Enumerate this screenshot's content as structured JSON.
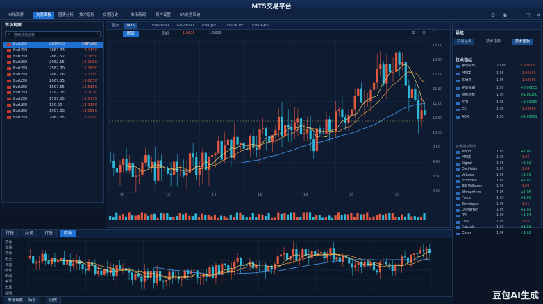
{
  "app": {
    "title": "MT5交易平台"
  },
  "menu": [
    {
      "label": "市场观察"
    },
    {
      "label": "交易面板"
    },
    {
      "label": "图表分析"
    },
    {
      "label": "技术指标"
    },
    {
      "label": "交易历史"
    },
    {
      "label": "市场新闻"
    },
    {
      "label": "账户设置"
    },
    {
      "label": "EA交易系统"
    }
  ],
  "market_watch": {
    "title": "市场观察",
    "search_placeholder": "搜索交易品种",
    "rows": [
      {
        "symbol": "EurUSD",
        "bid": "GBPUSD",
        "ask": "GBPUSD",
        "selected": true
      },
      {
        "symbol": "EurUSD",
        "bid": "2867.33",
        "ask": "13.1150"
      },
      {
        "symbol": "EurUSD",
        "bid": "2867.52",
        "ask": "12.1850"
      },
      {
        "symbol": "EurUSD",
        "bid": "2952.15",
        "ask": "13.1060"
      },
      {
        "symbol": "EurUSD",
        "bid": "2562.70",
        "ask": "12.1680"
      },
      {
        "symbol": "EurUSD",
        "bid": "2867.16",
        "ask": "13.1150"
      },
      {
        "symbol": "EurUSD",
        "bid": "2067.55",
        "ask": "13.0850"
      },
      {
        "symbol": "EurUSD",
        "bid": "1597.55",
        "ask": "13.5150"
      },
      {
        "symbol": "EurUSD",
        "bid": "1297.05",
        "ask": "13.1010"
      },
      {
        "symbol": "EurUSD",
        "bid": "1597.05",
        "ask": "13.5750"
      },
      {
        "symbol": "EurUSD",
        "bid": "130.20",
        "ask": "13.1150"
      },
      {
        "symbol": "EurUSD",
        "bid": "1997.00",
        "ask": "13.0850"
      },
      {
        "symbol": "EurUSD",
        "bid": "2067.35",
        "ask": "13.1150"
      }
    ]
  },
  "chart_tabs": [
    {
      "label": "图表"
    },
    {
      "label": "MT5"
    },
    {
      "label": "EUR/USD"
    },
    {
      "label": "GBP/USD"
    },
    {
      "label": "EUR/JPY"
    },
    {
      "label": "USD/CHF"
    },
    {
      "label": "EUR/GBP"
    }
  ],
  "chart_toolbar": {
    "mode": "图表",
    "period": "周期",
    "price": "1.0828",
    "range": "1.0820"
  },
  "navigator": {
    "title": "导航",
    "tabs": [
      {
        "label": "交易品种"
      },
      {
        "label": "技术指标"
      },
      {
        "label": "技术面板"
      }
    ],
    "section": "技术指标",
    "rows": [
      {
        "k": "移动平均",
        "v1": "20.00",
        "v2": "1.05023"
      },
      {
        "k": "MACD",
        "v1": "1.05",
        "v2": "-1.00039"
      },
      {
        "k": "布林带",
        "v1": "1.05",
        "v2": "-1.08050"
      },
      {
        "k": "相对强弱",
        "v1": "1.05",
        "v2": "+0.06033"
      },
      {
        "k": "随机指标",
        "v1": "1.05",
        "v2": "+1.00150"
      },
      {
        "k": "ATR",
        "v1": "1.05",
        "v2": "+1.00059"
      },
      {
        "k": "CCI",
        "v1": "1.05",
        "v2": "-1.02560"
      },
      {
        "k": "ADX",
        "v1": "1.05",
        "v2": "+1.00089"
      }
    ],
    "list_title": "技术指标列表",
    "list": [
      {
        "k": "Trend",
        "v1": "1.05",
        "v2": "+1.00"
      },
      {
        "k": "MACD",
        "v1": "1.05",
        "v2": "-1.06"
      },
      {
        "k": "Signal",
        "v1": "1.05",
        "v2": "+1.02"
      },
      {
        "k": "Oscillator",
        "v1": "1.05",
        "v2": "-1.04"
      },
      {
        "k": "Volume",
        "v1": "1.05",
        "v2": "+1.01"
      },
      {
        "k": "Ichimoku",
        "v1": "1.05",
        "v2": "+1.03"
      },
      {
        "k": "Bill Williams",
        "v1": "1.05",
        "v2": "-1.02"
      },
      {
        "k": "Momentum",
        "v1": "1.05",
        "v2": "+1.05"
      },
      {
        "k": "Force",
        "v1": "1.05",
        "v2": "+1.00"
      },
      {
        "k": "Envelopes",
        "v1": "1.05",
        "v2": "-1.01"
      },
      {
        "k": "DeMarker",
        "v1": "1.05",
        "v2": "+1.02"
      },
      {
        "k": "RVI",
        "v1": "1.05",
        "v2": "+1.04"
      },
      {
        "k": "OBV",
        "v1": "1.05",
        "v2": "-1.03"
      },
      {
        "k": "Fractals",
        "v1": "1.05",
        "v2": "+1.01"
      },
      {
        "k": "Gator",
        "v1": "1.05",
        "v2": "+1.02"
      }
    ]
  },
  "bottom_tabs": [
    {
      "label": "持仓"
    },
    {
      "label": "交易"
    },
    {
      "label": "持仓"
    },
    {
      "label": "历史"
    }
  ],
  "bottom_side": [
    {
      "label": "持仓"
    },
    {
      "label": "交易"
    },
    {
      "label": "持仓"
    },
    {
      "label": "历史"
    },
    {
      "label": "日志"
    },
    {
      "label": "邮件"
    },
    {
      "label": "新闻"
    },
    {
      "label": "信号"
    },
    {
      "label": "市场"
    },
    {
      "label": "提醒"
    }
  ],
  "status_tabs": [
    {
      "label": "市场观察"
    },
    {
      "label": "持仓"
    },
    {
      "label": "历史"
    }
  ],
  "price_axis": [
    "13.00",
    "12.50",
    "12.00",
    "11.50",
    "11.00",
    "10.50",
    "10.00",
    "9.50",
    "9.00",
    "8.50",
    "8.00"
  ],
  "time_axis": [
    "10",
    "12",
    "14",
    "16",
    "18",
    "20",
    "22"
  ],
  "watermark": "豆包AI生成",
  "colors": {
    "up": "#e0583f",
    "down": "#2fb7d6",
    "accent": "#1d6fd1"
  }
}
